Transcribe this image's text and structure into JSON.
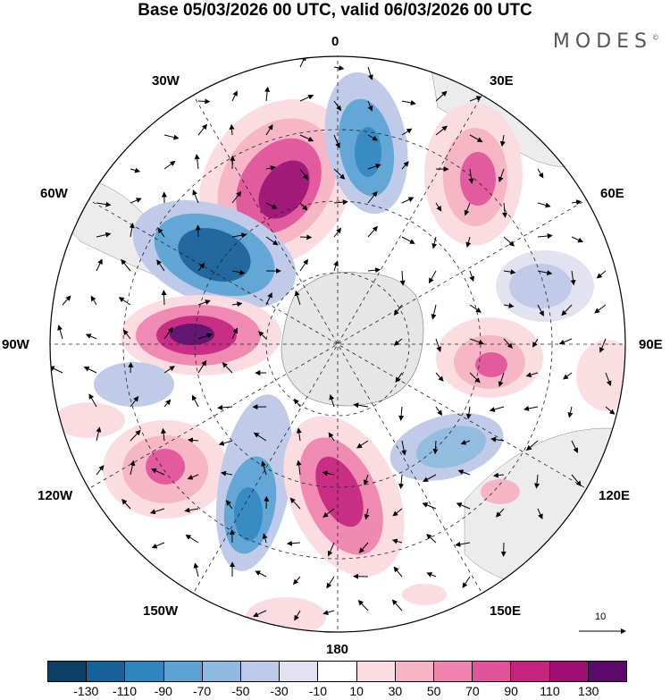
{
  "header": {
    "title": "Base 05/03/2026 00 UTC, valid 06/03/2026 00 UTC",
    "brand": "MODES"
  },
  "map": {
    "longitude_labels": {
      "top": "0",
      "top_right": "30E",
      "upper_right": "60E",
      "right": "90E",
      "lower_right": "120E",
      "bottom_right": "150E",
      "bottom": "180",
      "bottom_left": "150W",
      "lower_left": "120W",
      "left": "90W",
      "upper_left": "60W",
      "top_left": "30W"
    },
    "reference_vector_label": "10"
  },
  "colorbar": {
    "colors": [
      "#0b3f66",
      "#16619a",
      "#2f85c0",
      "#5aa3d3",
      "#8eb9e0",
      "#bcc9e8",
      "#e2e1f0",
      "#ffffff",
      "#fbdce0",
      "#f6b3c3",
      "#ef85ae",
      "#e1539a",
      "#c5237e",
      "#9e0f73",
      "#5b0a6b"
    ],
    "tick_labels": [
      "-130",
      "-110",
      "-90",
      "-70",
      "-50",
      "-30",
      "-10",
      "10",
      "30",
      "50",
      "70",
      "90",
      "110",
      "130"
    ]
  }
}
